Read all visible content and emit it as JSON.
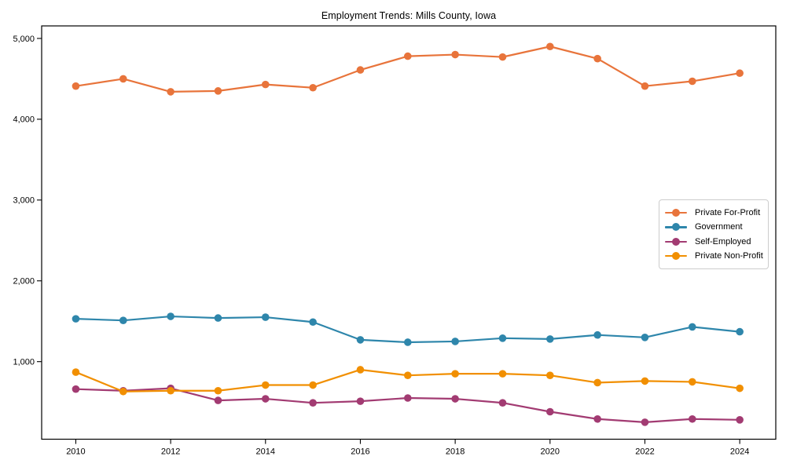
{
  "chart_data": {
    "type": "line",
    "title": "Employment Trends: Mills County, Iowa",
    "xlabel": "",
    "ylabel": "",
    "x": [
      2010,
      2011,
      2012,
      2013,
      2014,
      2015,
      2016,
      2017,
      2018,
      2019,
      2020,
      2021,
      2022,
      2023,
      2024
    ],
    "xticks": [
      2010,
      2012,
      2014,
      2016,
      2018,
      2020,
      2022,
      2024
    ],
    "xtick_labels": [
      "2010",
      "2012",
      "2014",
      "2016",
      "2018",
      "2020",
      "2022",
      "2024"
    ],
    "yticks": [
      1000,
      2000,
      3000,
      4000,
      5000
    ],
    "ytick_labels": [
      "1,000",
      "2,000",
      "3,000",
      "4,000",
      "5,000"
    ],
    "xlim": [
      2009.28,
      2024.76
    ],
    "ylim": [
      40,
      5155
    ],
    "grid": false,
    "legend_position": "center right",
    "marker": "circle",
    "series": [
      {
        "name": "Private For-Profit",
        "color": "#E8743B",
        "values": [
          4410,
          4500,
          4340,
          4350,
          4430,
          4390,
          4610,
          4780,
          4800,
          4770,
          4900,
          4750,
          4410,
          4470,
          4570
        ]
      },
      {
        "name": "Government",
        "color": "#2E86AB",
        "values": [
          1530,
          1510,
          1560,
          1540,
          1550,
          1490,
          1270,
          1240,
          1250,
          1290,
          1280,
          1330,
          1300,
          1430,
          1370
        ]
      },
      {
        "name": "Self-Employed",
        "color": "#A23B72",
        "values": [
          660,
          640,
          670,
          520,
          540,
          490,
          510,
          550,
          540,
          490,
          380,
          290,
          250,
          290,
          280
        ]
      },
      {
        "name": "Private Non-Profit",
        "color": "#F18F01",
        "values": [
          870,
          630,
          640,
          640,
          710,
          710,
          900,
          830,
          850,
          850,
          830,
          740,
          760,
          750,
          670
        ]
      }
    ]
  }
}
